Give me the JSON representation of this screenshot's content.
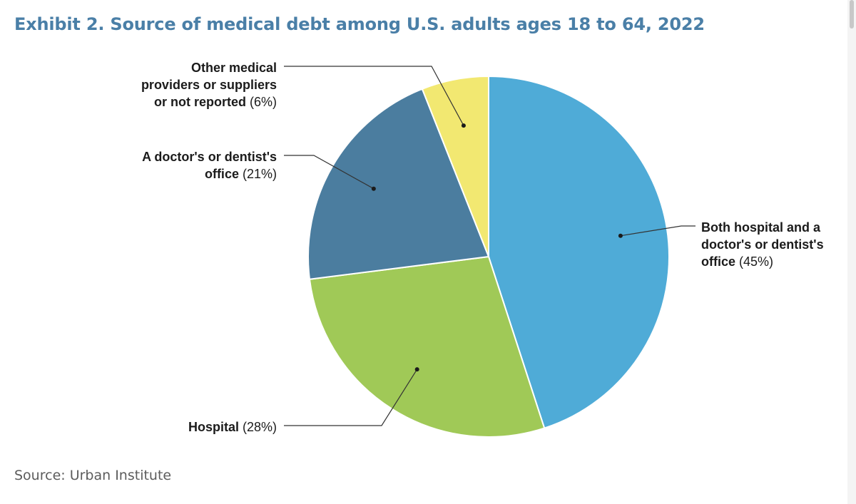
{
  "title": "Exhibit 2. Source of medical debt among U.S. adults ages 18 to 64, 2022",
  "source": "Source: Urban Institute",
  "chart_data": {
    "type": "pie",
    "title": "Exhibit 2. Source of medical debt among U.S. adults ages 18 to 64, 2022",
    "slices": [
      {
        "label": "Both hospital and a doctor's or dentist's office",
        "label_lines": [
          "Both hospital and a",
          "doctor's or dentist's",
          "office"
        ],
        "pct_text": "(45%)",
        "value": 45,
        "color": "#4fabd7"
      },
      {
        "label": "Hospital",
        "label_lines": [
          "Hospital"
        ],
        "pct_text": "(28%)",
        "value": 28,
        "color": "#a0c957"
      },
      {
        "label": "A doctor's or dentist's office",
        "label_lines": [
          "A doctor's or dentist's",
          "office"
        ],
        "pct_text": "(21%)",
        "value": 21,
        "color": "#4b7d9f"
      },
      {
        "label": "Other medical providers or suppliers or not reported",
        "label_lines": [
          "Other medical",
          "providers or suppliers",
          "or not reported"
        ],
        "pct_text": "(6%)",
        "value": 6,
        "color": "#f2e871"
      }
    ]
  }
}
